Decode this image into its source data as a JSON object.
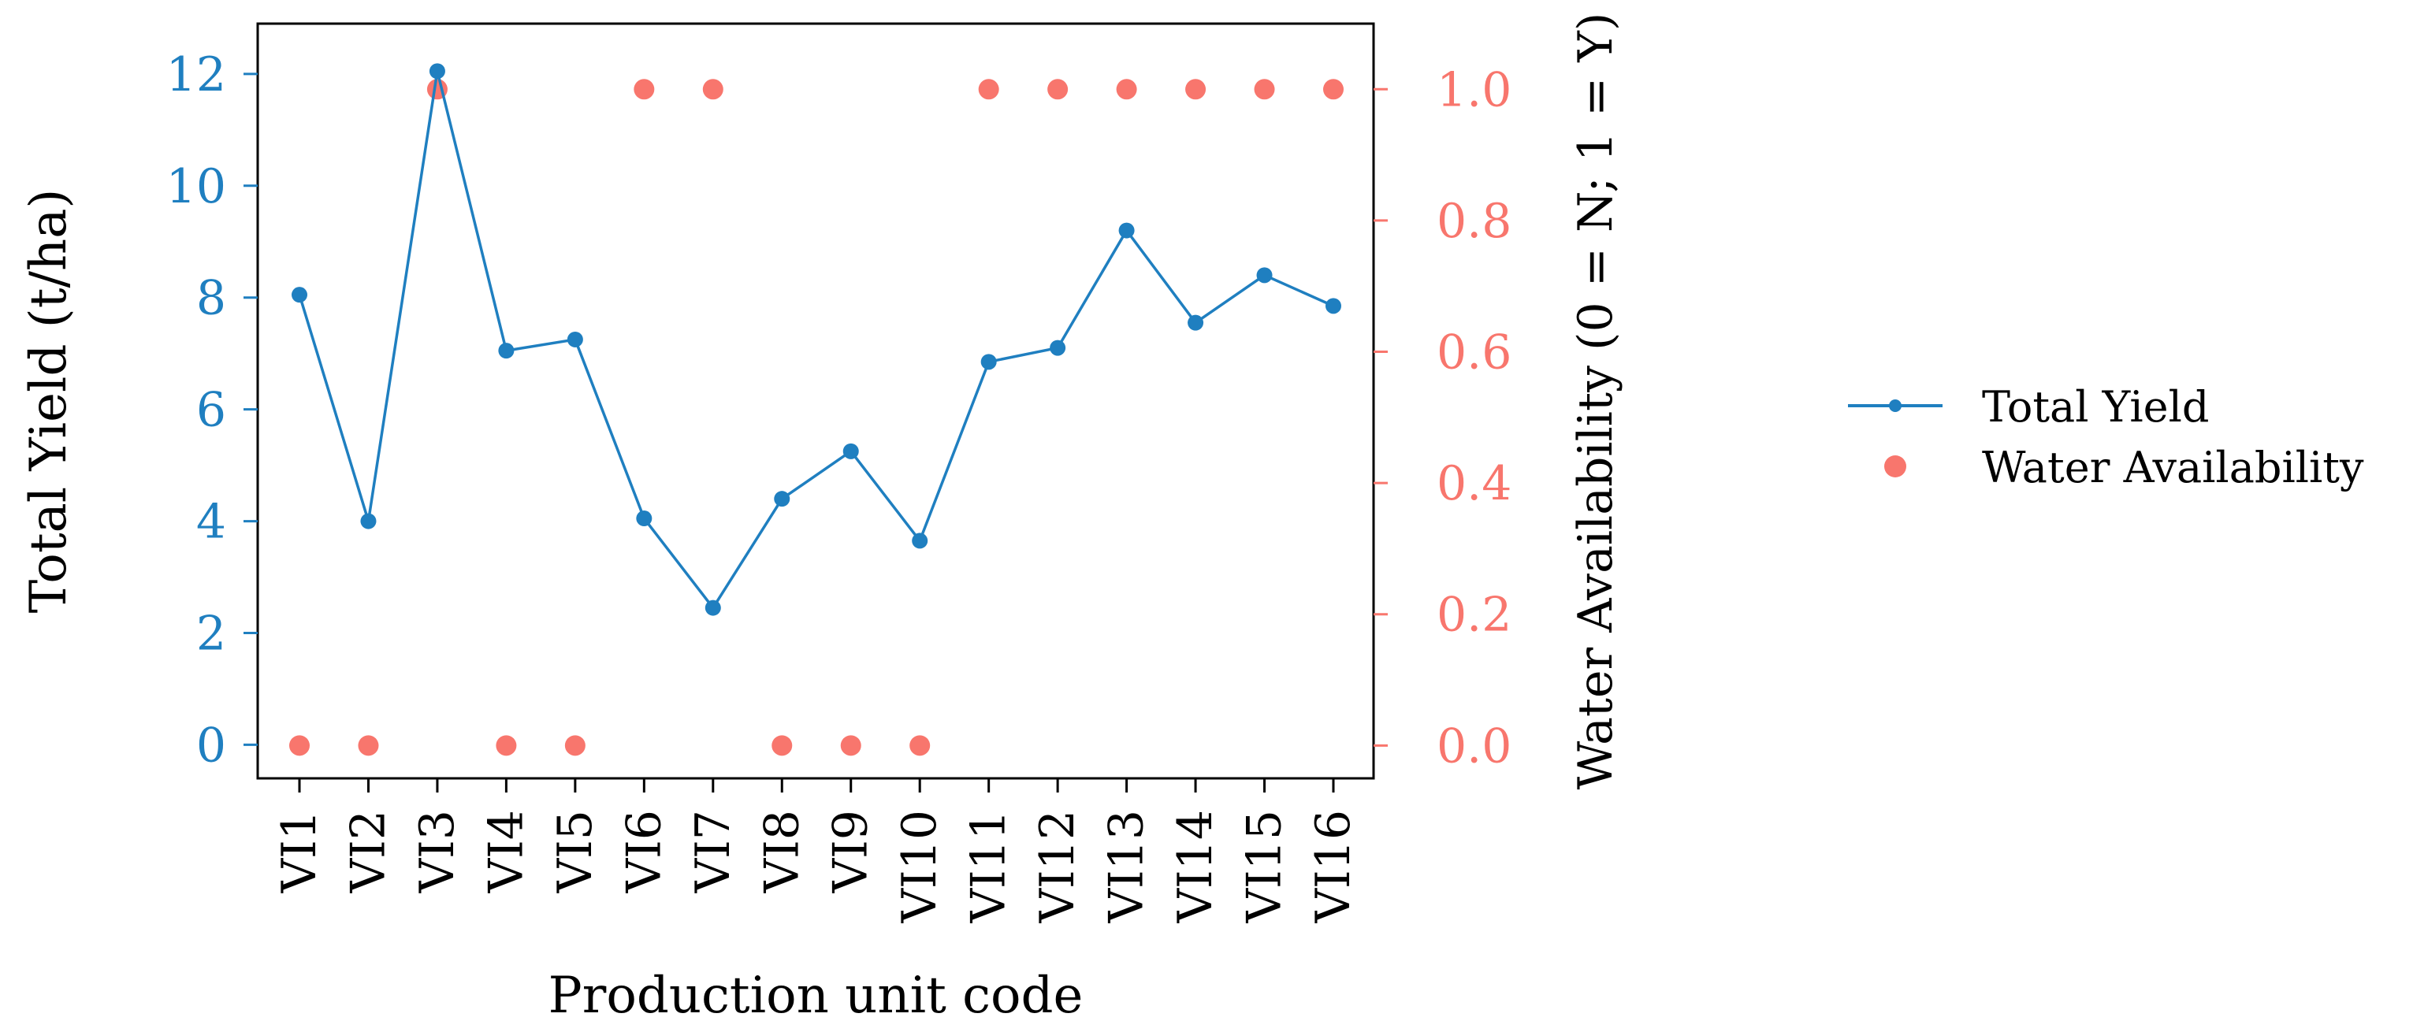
{
  "chart_data": {
    "type": "line",
    "x": [
      "VI1",
      "VI2",
      "VI3",
      "VI4",
      "VI5",
      "VI6",
      "VI7",
      "VI8",
      "VI9",
      "VI10",
      "VI11",
      "VI12",
      "VI13",
      "VI14",
      "VI15",
      "VI16"
    ],
    "series": [
      {
        "name": "Total Yield",
        "axis": "left",
        "type": "line",
        "color": "#1f7fc0",
        "values": [
          8.05,
          4.0,
          12.05,
          7.05,
          7.25,
          4.05,
          2.45,
          4.4,
          5.25,
          3.65,
          6.85,
          7.1,
          9.2,
          7.55,
          8.4,
          7.85
        ]
      },
      {
        "name": "Water Availability",
        "axis": "right",
        "type": "scatter",
        "color": "#f8766d",
        "values": [
          0,
          0,
          1,
          0,
          0,
          1,
          1,
          0,
          0,
          0,
          1,
          1,
          1,
          1,
          1,
          1
        ]
      }
    ],
    "xlabel": "Production unit code",
    "ylabel_left": "Total Yield (t/ha)",
    "ylabel_right": "Water Availability (0 = N; 1 = Y)",
    "ylim_left": [
      -0.6,
      12.9
    ],
    "yticks_left": [
      "0",
      "2",
      "4",
      "6",
      "8",
      "10",
      "12"
    ],
    "ylim_right": [
      -0.05,
      1.1
    ],
    "yticks_right": [
      "0.0",
      "0.2",
      "0.4",
      "0.6",
      "0.8",
      "1.0"
    ],
    "grid": false,
    "legend_position": "right",
    "left_axis_color": "#1f7fc0",
    "right_axis_color": "#f8766d"
  }
}
